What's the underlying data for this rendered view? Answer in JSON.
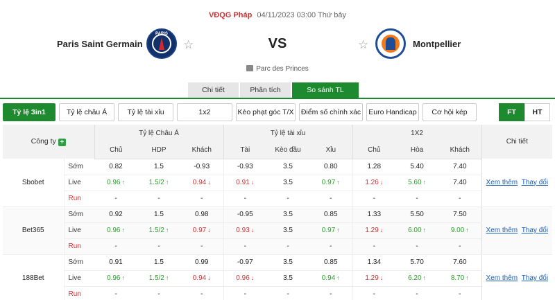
{
  "match": {
    "league": "VĐQG Pháp",
    "datetime": "04/11/2023 03:00 Thứ bảy",
    "home": "Paris Saint Germain",
    "away": "Montpellier",
    "vs": "VS",
    "venue": "Parc des Princes",
    "home_logo_text": "PARIS"
  },
  "tabs": [
    {
      "label": "Chi tiết",
      "active": false
    },
    {
      "label": "Phân tích",
      "active": false
    },
    {
      "label": "So sánh TL",
      "active": true
    }
  ],
  "filters": [
    {
      "label": "Tỷ lệ 3in1",
      "active": true
    },
    {
      "label": "Tỷ lệ châu Á",
      "active": false
    },
    {
      "label": "Tỷ lệ tài xỉu",
      "active": false
    },
    {
      "label": "1x2",
      "active": false
    },
    {
      "label": "Kèo phạt góc T/X",
      "active": false
    },
    {
      "label": "Điểm số chính xác",
      "active": false
    },
    {
      "label": "Euro Handicap",
      "active": false
    },
    {
      "label": "Cơ hội kép",
      "active": false
    }
  ],
  "toggle": [
    {
      "label": "FT",
      "active": true
    },
    {
      "label": "HT",
      "active": false
    }
  ],
  "table": {
    "company_header": "Công ty",
    "plus": "+",
    "group_headers": [
      "Tỷ lệ Châu Á",
      "Tỷ lệ tài xỉu",
      "1X2"
    ],
    "detail_header": "Chi tiết",
    "sub_headers": [
      "Chủ",
      "HDP",
      "Khách",
      "Tài",
      "Kèo đầu",
      "Xỉu",
      "Chủ",
      "Hòa",
      "Khách"
    ],
    "row_labels": [
      "Sớm",
      "Live",
      "Run"
    ],
    "view_more": "Xem thêm",
    "change": "Thay đổi",
    "companies": [
      {
        "name": "Sbobet",
        "rows": [
          [
            {
              "v": "0.82"
            },
            {
              "v": "1.5"
            },
            {
              "v": "-0.93"
            },
            {
              "v": "-0.93"
            },
            {
              "v": "3.5"
            },
            {
              "v": "0.80"
            },
            {
              "v": "1.28"
            },
            {
              "v": "5.40"
            },
            {
              "v": "7.40"
            }
          ],
          [
            {
              "v": "0.96",
              "d": "up"
            },
            {
              "v": "1.5/2",
              "d": "up"
            },
            {
              "v": "0.94",
              "d": "dn"
            },
            {
              "v": "0.91",
              "d": "dn"
            },
            {
              "v": "3.5"
            },
            {
              "v": "0.97",
              "d": "up"
            },
            {
              "v": "1.26",
              "d": "dn"
            },
            {
              "v": "5.60",
              "d": "up"
            },
            {
              "v": "7.40"
            }
          ],
          [
            {
              "v": "-"
            },
            {
              "v": "-"
            },
            {
              "v": "-"
            },
            {
              "v": "-"
            },
            {
              "v": "-"
            },
            {
              "v": "-"
            },
            {
              "v": "-"
            },
            {
              "v": "-"
            },
            {
              "v": "-"
            }
          ]
        ]
      },
      {
        "name": "Bet365",
        "rows": [
          [
            {
              "v": "0.92"
            },
            {
              "v": "1.5"
            },
            {
              "v": "0.98"
            },
            {
              "v": "-0.95"
            },
            {
              "v": "3.5"
            },
            {
              "v": "0.85"
            },
            {
              "v": "1.33"
            },
            {
              "v": "5.50"
            },
            {
              "v": "7.50"
            }
          ],
          [
            {
              "v": "0.96",
              "d": "up"
            },
            {
              "v": "1.5/2",
              "d": "up"
            },
            {
              "v": "0.97",
              "d": "dn"
            },
            {
              "v": "0.93",
              "d": "dn"
            },
            {
              "v": "3.5"
            },
            {
              "v": "0.97",
              "d": "up"
            },
            {
              "v": "1.29",
              "d": "dn"
            },
            {
              "v": "6.00",
              "d": "up"
            },
            {
              "v": "9.00",
              "d": "up"
            }
          ],
          [
            {
              "v": "-"
            },
            {
              "v": "-"
            },
            {
              "v": "-"
            },
            {
              "v": "-"
            },
            {
              "v": "-"
            },
            {
              "v": "-"
            },
            {
              "v": "-"
            },
            {
              "v": "-"
            },
            {
              "v": "-"
            }
          ]
        ]
      },
      {
        "name": "188Bet",
        "rows": [
          [
            {
              "v": "0.91"
            },
            {
              "v": "1.5"
            },
            {
              "v": "0.99"
            },
            {
              "v": "-0.97"
            },
            {
              "v": "3.5"
            },
            {
              "v": "0.85"
            },
            {
              "v": "1.34"
            },
            {
              "v": "5.70"
            },
            {
              "v": "7.60"
            }
          ],
          [
            {
              "v": "0.96",
              "d": "up"
            },
            {
              "v": "1.5/2",
              "d": "up"
            },
            {
              "v": "0.94",
              "d": "dn"
            },
            {
              "v": "0.96",
              "d": "dn"
            },
            {
              "v": "3.5"
            },
            {
              "v": "0.94",
              "d": "up"
            },
            {
              "v": "1.29",
              "d": "dn"
            },
            {
              "v": "6.20",
              "d": "up"
            },
            {
              "v": "8.70",
              "d": "up"
            }
          ],
          [
            {
              "v": "-"
            },
            {
              "v": "-"
            },
            {
              "v": "-"
            },
            {
              "v": "-"
            },
            {
              "v": "-"
            },
            {
              "v": "-"
            },
            {
              "v": "-"
            },
            {
              "v": "-"
            },
            {
              "v": "-"
            }
          ]
        ]
      }
    ]
  },
  "colors": {
    "accent": "#1e8a2f",
    "up": "#2a9d2a",
    "down": "#d13030",
    "link": "#1a5fb4"
  }
}
